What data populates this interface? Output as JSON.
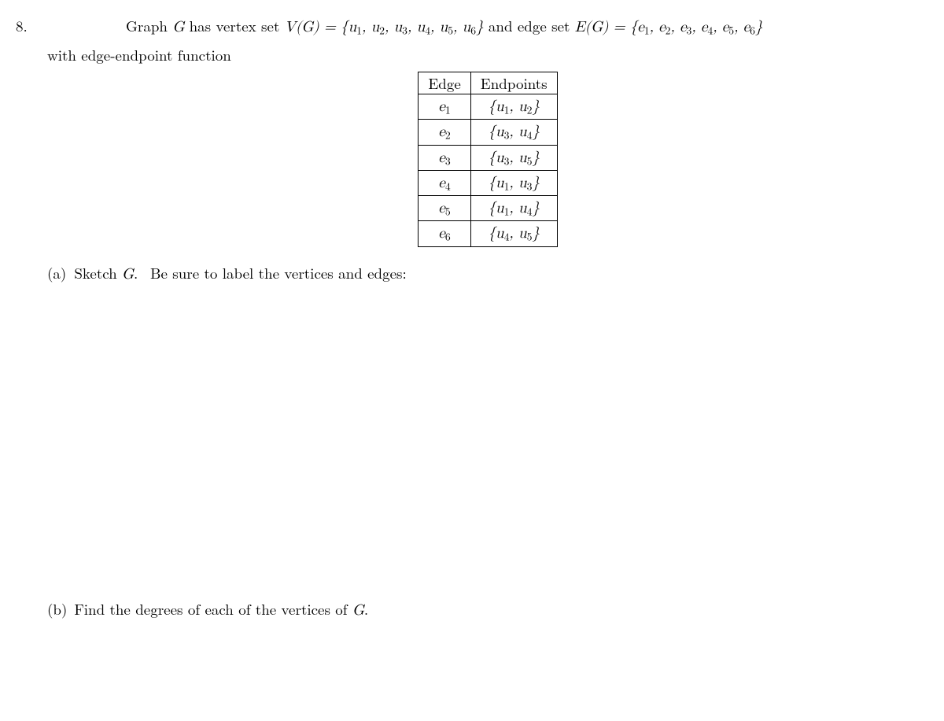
{
  "problem_number": "8.",
  "intro_prefix": "Graph ",
  "G": "G",
  "intro_mid1": " has vertex set ",
  "VG": "V(G) = {u",
  "vertex_indices": [
    "1",
    "2",
    "3",
    "4",
    "5",
    "6"
  ],
  "intro_mid2": "} and edge set ",
  "EG": "E(G) = {e",
  "edge_indices": [
    "1",
    "2",
    "3",
    "4",
    "5",
    "6"
  ],
  "intro_close": "}",
  "intro_line2": "with edge-endpoint function",
  "table": {
    "headers": [
      "Edge",
      "Endpoints"
    ],
    "rows": [
      {
        "edge": "e",
        "ei": "1",
        "u_a": "u",
        "ai": "1",
        "u_b": "u",
        "bi": "2"
      },
      {
        "edge": "e",
        "ei": "2",
        "u_a": "u",
        "ai": "3",
        "u_b": "u",
        "bi": "4"
      },
      {
        "edge": "e",
        "ei": "3",
        "u_a": "u",
        "ai": "3",
        "u_b": "u",
        "bi": "5"
      },
      {
        "edge": "e",
        "ei": "4",
        "u_a": "u",
        "ai": "1",
        "u_b": "u",
        "bi": "3"
      },
      {
        "edge": "e",
        "ei": "5",
        "u_a": "u",
        "ai": "1",
        "u_b": "u",
        "bi": "4"
      },
      {
        "edge": "e",
        "ei": "6",
        "u_a": "u",
        "ai": "4",
        "u_b": "u",
        "bi": "5"
      }
    ]
  },
  "part_a_label": "(a)",
  "part_a_text": "Sketch G.  Be sure to label the vertices and edges:",
  "part_b_label": "(b)",
  "part_b_text": "Find the degrees of each of the vertices of G."
}
